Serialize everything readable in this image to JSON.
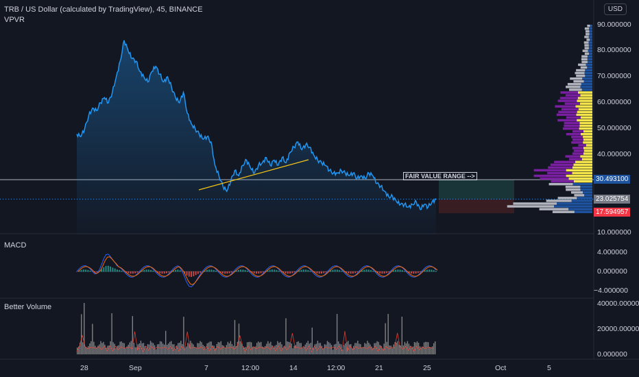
{
  "header": {
    "symbol_title": "TRB / US Dollar (calculated by TradingView), 45, BINANCE",
    "indicator": "VPVR",
    "currency_button": "USD"
  },
  "colors": {
    "background": "#131722",
    "price_line": "#2196f3",
    "trendline": "#f5c518",
    "vp_up": "#1e53a0",
    "vp_yellow": "#f5e64c",
    "vp_purple": "#7b1fa2",
    "vp_gray": "#b2b5be",
    "badge_blue": "#1e53a0",
    "badge_gray": "#787b86",
    "badge_red": "#f23645",
    "macd_line": "#2962ff",
    "signal_line": "#ff6d00",
    "vol_bar": "#9e9e9e",
    "vol_line": "#f44336"
  },
  "price_axis": {
    "ticks": [
      "90.000000",
      "80.000000",
      "70.000000",
      "60.000000",
      "50.000000",
      "40.000000",
      "10.000000"
    ],
    "hidden_ticks_note": ""
  },
  "badges": {
    "fair_value": "30.493100",
    "current": "23.025754",
    "low": "17.594957"
  },
  "annotation": {
    "fair_value_label": "FAIR VALUE RANGE -->"
  },
  "macd": {
    "title": "MACD",
    "ticks": [
      "4.000000",
      "0.000000",
      "−4.000000"
    ]
  },
  "volume": {
    "title": "Better Volume",
    "ticks": [
      "40000.000000",
      "20000.000000",
      "0.000000"
    ]
  },
  "time_axis": {
    "labels": [
      "28",
      "Sep",
      "7",
      "12:00",
      "14",
      "12:00",
      "21",
      "25",
      "Oct",
      "5"
    ]
  },
  "chart_data": {
    "type": "line",
    "series": [
      {
        "values": [
          48,
          47,
          50,
          55,
          58,
          57,
          60,
          62,
          60,
          64,
          70,
          76,
          84,
          80,
          77,
          76,
          72,
          70,
          68,
          72,
          74,
          71,
          68,
          70,
          66,
          62,
          60,
          64,
          56,
          52,
          50,
          48,
          46,
          47,
          45,
          36,
          32,
          28,
          26,
          30,
          34,
          32,
          36,
          38,
          35,
          33,
          36,
          37,
          39,
          36,
          38,
          36,
          39,
          37,
          41,
          43,
          45,
          42,
          44,
          43,
          40,
          38,
          37,
          36,
          34,
          33,
          33,
          34,
          33,
          32,
          33,
          31,
          32,
          31,
          33,
          32,
          29,
          28,
          26,
          24,
          24,
          22,
          21,
          21,
          20,
          21,
          22,
          19,
          21,
          20,
          22,
          23
        ]
      }
    ],
    "ylim": [
      10,
      95
    ],
    "volume_profile_range": [
      17.5,
      90
    ],
    "fair_value_price": 30.4931,
    "current_price": 23.025754,
    "low_price": 17.594957
  }
}
